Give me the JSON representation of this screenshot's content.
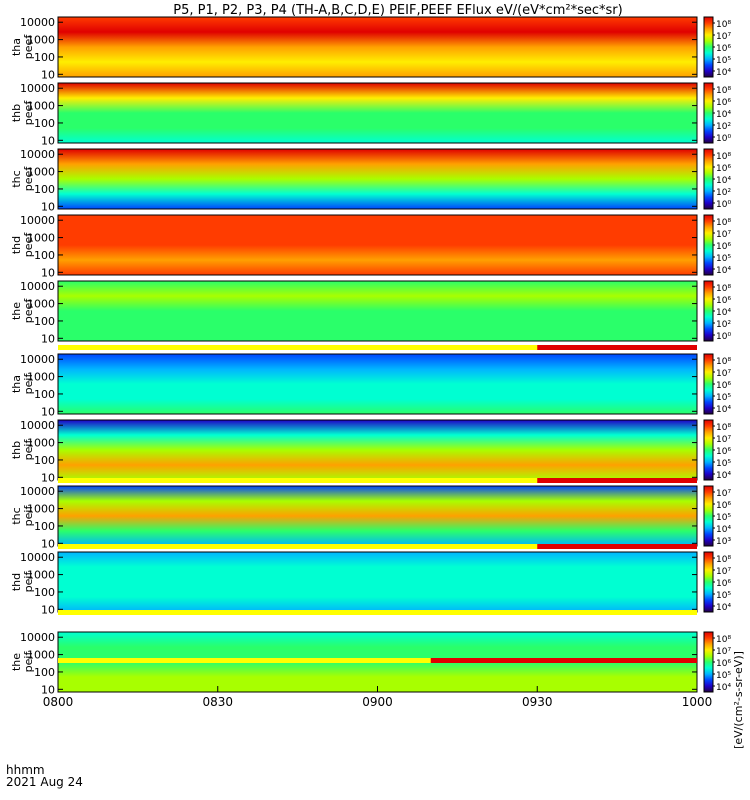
{
  "title": "P5, P1, P2, P3, P4 (TH-A,B,C,D,E) PEIF,PEEF EFlux eV/(eV*cm²*sec*sr)",
  "footer": {
    "axis_name": "hhmm",
    "date": "2021 Aug 24"
  },
  "colorbar_label": "[eV/(cm²-s-sr-eV)]",
  "colors": {
    "background": "#ffffff",
    "flag_yellow": "#ffff00",
    "flag_red": "#e00000",
    "colormap": [
      "#230042",
      "#1e00c8",
      "#0046ff",
      "#00b4ff",
      "#00ffd2",
      "#2aff6a",
      "#a8ff00",
      "#ffee00",
      "#ffa000",
      "#ff3c00",
      "#e00000"
    ]
  },
  "chart_data": {
    "type": "heatmap",
    "x_axis": {
      "ticks": [
        "0800",
        "0830",
        "0900",
        "0930",
        "1000"
      ],
      "range": [
        "0800",
        "1000"
      ]
    },
    "y_axis": {
      "scale": "log",
      "range": [
        7,
        20000
      ],
      "ticks": [
        "10",
        "100",
        "1000",
        "10000"
      ]
    },
    "panels": [
      {
        "label1": "tha",
        "label2": "peef",
        "cbar_ticks": [
          "10⁸",
          "10⁷",
          "10⁶",
          "10⁵",
          "10⁴"
        ],
        "levels": [
          8.0,
          7.4,
          8.3,
          9.6,
          9.3
        ]
      },
      {
        "label1": "thb",
        "label2": "peef",
        "cbar_ticks": [
          "10⁸",
          "10⁶",
          "10⁴",
          "10²",
          "10⁰"
        ],
        "levels": [
          4.0,
          4.5,
          5.0,
          7.3,
          10.0
        ]
      },
      {
        "label1": "thc",
        "label2": "peef",
        "cbar_ticks": [
          "10⁸",
          "10⁶",
          "10⁴",
          "10²",
          "10⁰"
        ],
        "levels": [
          2.0,
          3.5,
          5.5,
          7.5,
          10.0
        ]
      },
      {
        "label1": "thd",
        "label2": "peef",
        "cbar_ticks": [
          "10⁸",
          "10⁷",
          "10⁶",
          "10⁵",
          "10⁴"
        ],
        "levels": [
          8.5,
          7.8,
          8.6,
          9.2,
          9.3
        ]
      },
      {
        "label1": "the",
        "label2": "peef",
        "cbar_ticks": [
          "10⁸",
          "10⁶",
          "10⁴",
          "10²",
          "10⁰"
        ],
        "levels": [
          5.2,
          5.4,
          5.4,
          5.5,
          5.2
        ]
      },
      {
        "label1": "tha",
        "label2": "peif",
        "cbar_ticks": [
          "10⁸",
          "10⁷",
          "10⁶",
          "10⁵",
          "10⁴"
        ],
        "levels": [
          5.0,
          4.3,
          3.8,
          3.2,
          2.0
        ]
      },
      {
        "label1": "thb",
        "label2": "peif",
        "cbar_ticks": [
          "10⁸",
          "10⁷",
          "10⁶",
          "10⁵",
          "10⁴"
        ],
        "levels": [
          6.2,
          8.3,
          6.0,
          3.5,
          1.3
        ]
      },
      {
        "label1": "thc",
        "label2": "peif",
        "cbar_ticks": [
          "10⁷",
          "10⁶",
          "10⁵",
          "10⁴",
          "10³"
        ],
        "levels": [
          2.5,
          5.0,
          8.1,
          5.5,
          1.5
        ]
      },
      {
        "label1": "thd",
        "label2": "peif",
        "cbar_ticks": [
          "10⁸",
          "10⁷",
          "10⁶",
          "10⁵",
          "10⁴"
        ],
        "levels": [
          3.2,
          4.0,
          4.0,
          3.5,
          2.5
        ]
      },
      {
        "label1": "the",
        "label2": "peif",
        "cbar_ticks": [
          "10⁸",
          "10⁷",
          "10⁶",
          "10⁵",
          "10⁴"
        ],
        "levels": [
          5.5,
          5.5,
          5.2,
          4.5,
          3.5
        ]
      }
    ],
    "flag_bars": [
      {
        "red_from": "0930",
        "red_to": "1000"
      },
      {
        "red_from": "0930",
        "red_to": "1000"
      },
      {
        "red_from": "0930",
        "red_to": "1000"
      },
      {
        "red_from": "",
        "red_to": ""
      },
      {
        "red_from": "0910",
        "red_to": "1000"
      }
    ]
  }
}
